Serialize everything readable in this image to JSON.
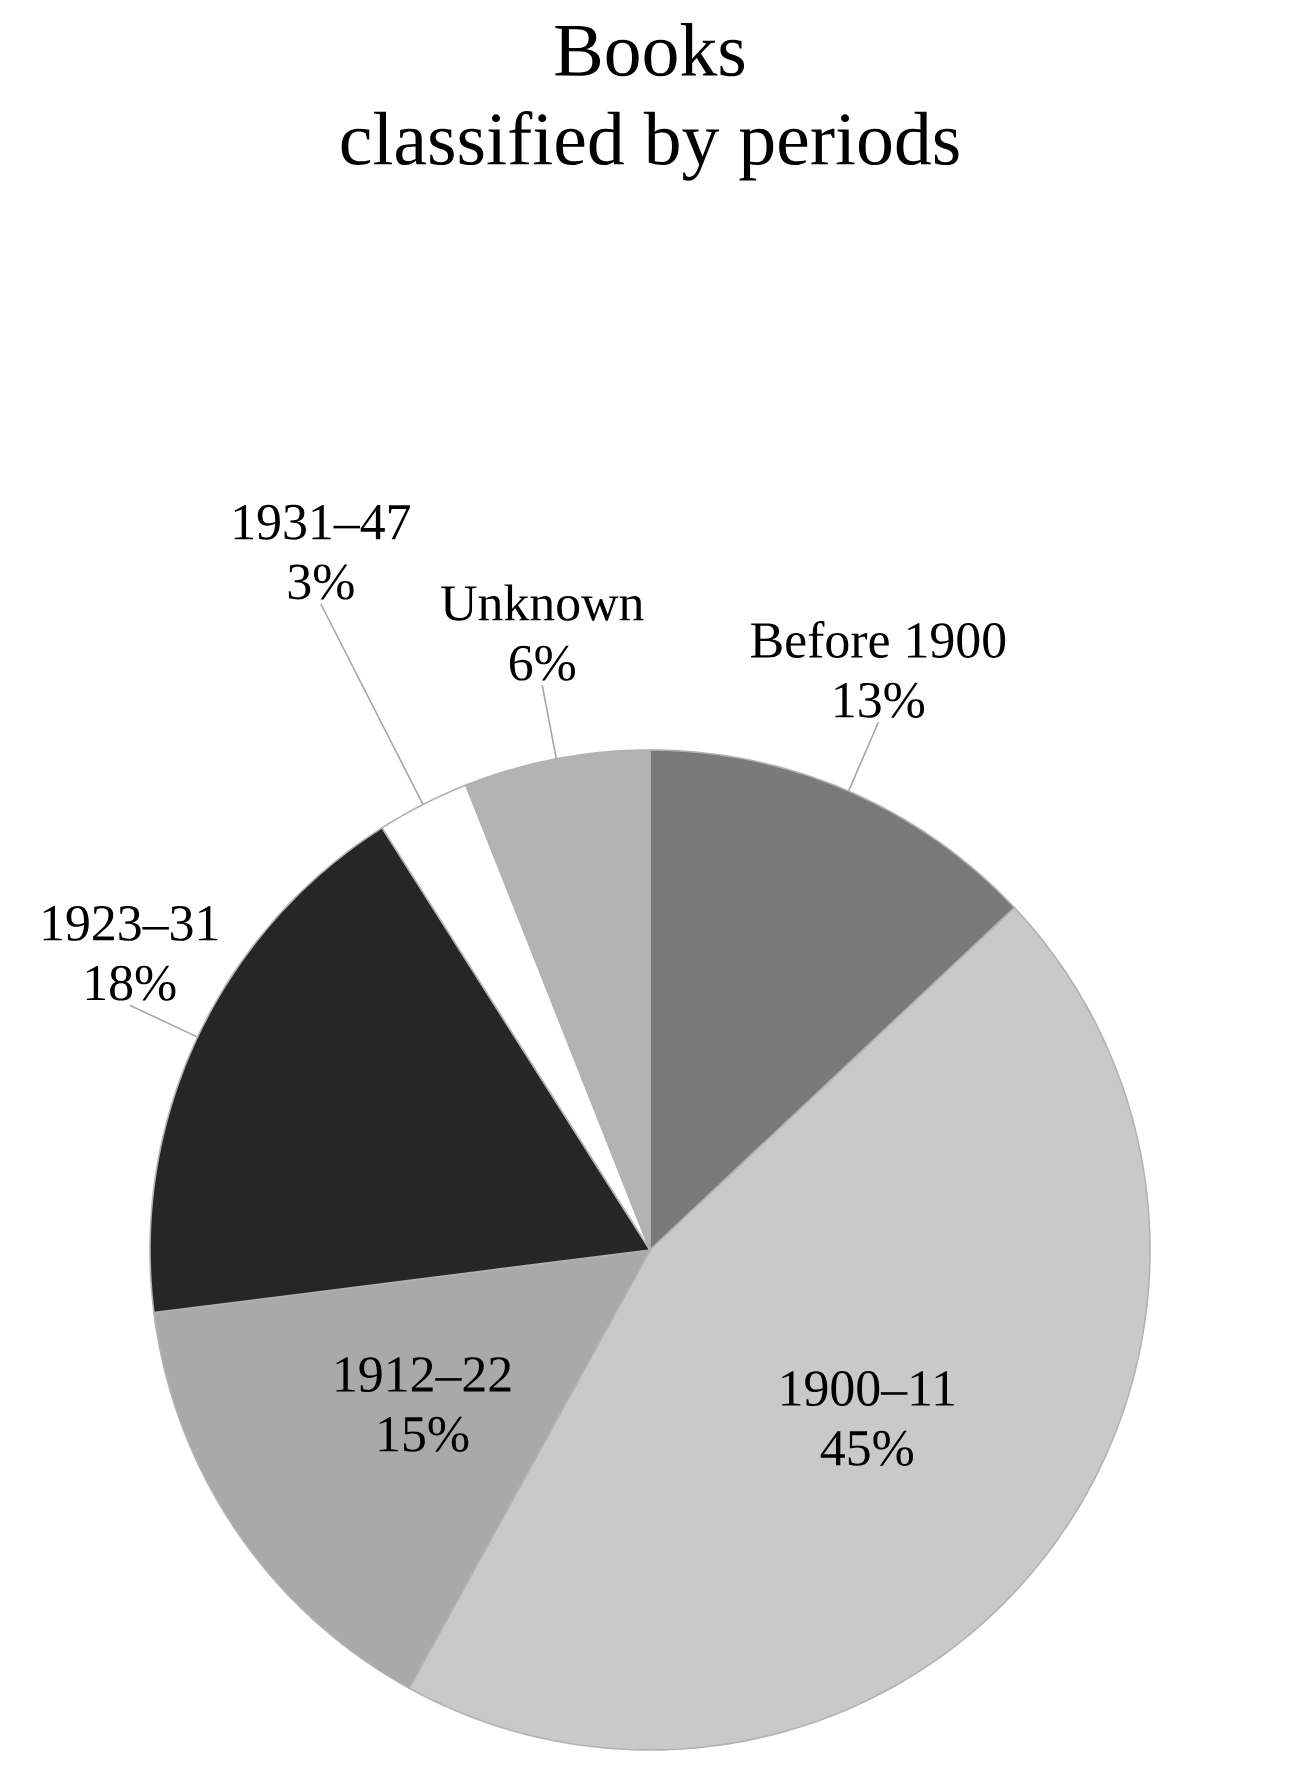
{
  "chart_data": {
    "type": "pie",
    "title": "Books",
    "subtitle": "classified by periods",
    "categories": [
      "Before 1900",
      "1900–11",
      "1912–22",
      "1923–31",
      "1931–47",
      "Unknown"
    ],
    "values": [
      13,
      45,
      15,
      18,
      3,
      6
    ],
    "value_labels": [
      "13%",
      "45%",
      "15%",
      "18%",
      "3%",
      "6%"
    ],
    "colors": [
      "#7a7a7a",
      "#c9c9c9",
      "#a9a9a9",
      "#262626",
      "#ffffff",
      "#b3b3b3"
    ]
  }
}
